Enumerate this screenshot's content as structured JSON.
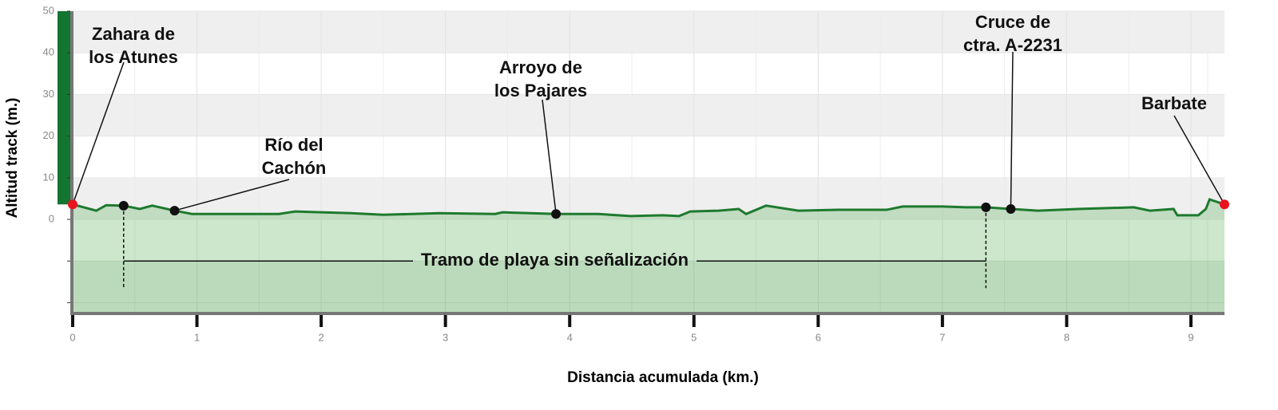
{
  "chart_data": {
    "type": "line",
    "area": true,
    "color": "#1e7a2e",
    "y_label": "Altitud track (m.)",
    "x_label": "Distancia acumulada (km.)",
    "xlim": [
      0,
      9.27
    ],
    "ylim": [
      -22.4,
      50
    ],
    "xticks": [
      0,
      1,
      2,
      3,
      4,
      5,
      6,
      7,
      8,
      9
    ],
    "yticks": [
      {
        "value": -20,
        "label": null
      },
      {
        "value": -10,
        "label": null
      },
      0,
      10,
      20,
      30,
      40,
      50
    ],
    "grid": true,
    "x": [
      0,
      0.09,
      0.19,
      0.27,
      0.41,
      0.54,
      0.64,
      0.82,
      0.96,
      1.66,
      1.79,
      2.24,
      2.5,
      2.95,
      3.4,
      3.46,
      3.89,
      4.23,
      4.49,
      4.75,
      4.88,
      4.97,
      5.2,
      5.36,
      5.42,
      5.58,
      5.84,
      6.16,
      6.55,
      6.68,
      7.0,
      7.19,
      7.35,
      7.55,
      7.77,
      8.09,
      8.54,
      8.67,
      8.86,
      8.89,
      9.06,
      9.12,
      9.15,
      9.27
    ],
    "values": [
      3.6,
      2.9,
      2.1,
      3.4,
      3.3,
      2.5,
      3.3,
      2.1,
      1.3,
      1.3,
      1.9,
      1.5,
      1.1,
      1.5,
      1.3,
      1.7,
      1.3,
      1.3,
      0.8,
      1.0,
      0.8,
      1.9,
      2.1,
      2.5,
      1.3,
      3.3,
      2.1,
      2.3,
      2.3,
      3.1,
      3.1,
      2.9,
      2.9,
      2.5,
      2.1,
      2.5,
      2.9,
      2.1,
      2.5,
      1.0,
      1.0,
      2.5,
      4.8,
      3.6
    ],
    "waypoints": [
      {
        "label": "Zahara de\nlos Atunes",
        "x": 0,
        "y": 3.6,
        "color": "#e8141e"
      },
      {
        "label": null,
        "x": 0.41,
        "y": 3.3,
        "color": "#111111"
      },
      {
        "label": "Río del\nCachón",
        "x": 0.82,
        "y": 2.1,
        "color": "#111111"
      },
      {
        "label": "Arroyo de\nlos Pajares",
        "x": 3.89,
        "y": 1.3,
        "color": "#111111"
      },
      {
        "label": null,
        "x": 7.35,
        "y": 2.9,
        "color": "#111111"
      },
      {
        "label": "Cruce de\nctra. A-2231",
        "x": 7.55,
        "y": 2.5,
        "color": "#111111"
      },
      {
        "label": "Barbate",
        "x": 9.27,
        "y": 3.6,
        "color": "#e8141e"
      }
    ],
    "span_annotation": {
      "text": "Tramo de playa sin señalización",
      "x_start": 0.41,
      "x_end": 7.35,
      "y": -10
    }
  }
}
